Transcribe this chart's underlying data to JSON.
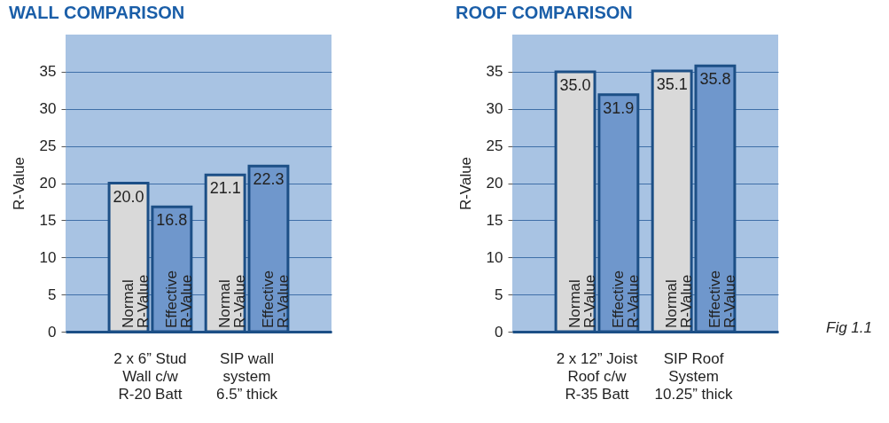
{
  "chart_data": [
    {
      "type": "bar",
      "title": "WALL COMPARISON",
      "ylabel": "R-Value",
      "categories": [
        "2 x 6” Stud\nWall c/w\nR-20 Batt",
        "SIP wall\nsystem\n6.5” thick"
      ],
      "series": [
        {
          "name": "Normal\nR-Value",
          "color": "#d9d9d9",
          "values": [
            20.0,
            21.1
          ]
        },
        {
          "name": "Effective\nR-Value",
          "color": "#6f97cc",
          "values": [
            16.8,
            22.3
          ]
        }
      ],
      "value_labels": [
        [
          "20.0",
          "21.1"
        ],
        [
          "16.8",
          "22.3"
        ]
      ],
      "ylim": [
        0,
        40
      ],
      "yticks": [
        0,
        5,
        10,
        15,
        20,
        25,
        30,
        35
      ],
      "grid": "y",
      "legend": false
    },
    {
      "type": "bar",
      "title": "ROOF COMPARISON",
      "ylabel": "R-Value",
      "categories": [
        "2 x 12” Joist\nRoof c/w\nR-35 Batt",
        "SIP Roof\nSystem\n10.25” thick"
      ],
      "series": [
        {
          "name": "Normal\nR-Value",
          "color": "#d9d9d9",
          "values": [
            35.0,
            35.1
          ]
        },
        {
          "name": "Effective\nR-Value",
          "color": "#6f97cc",
          "values": [
            31.9,
            35.8
          ]
        }
      ],
      "value_labels": [
        [
          "35.0",
          "35.1"
        ],
        [
          "31.9",
          "35.8"
        ]
      ],
      "ylim": [
        0,
        40
      ],
      "yticks": [
        0,
        5,
        10,
        15,
        20,
        25,
        30,
        35
      ],
      "grid": "y",
      "legend": false,
      "annotations": [
        "Fig 1.1"
      ]
    }
  ]
}
